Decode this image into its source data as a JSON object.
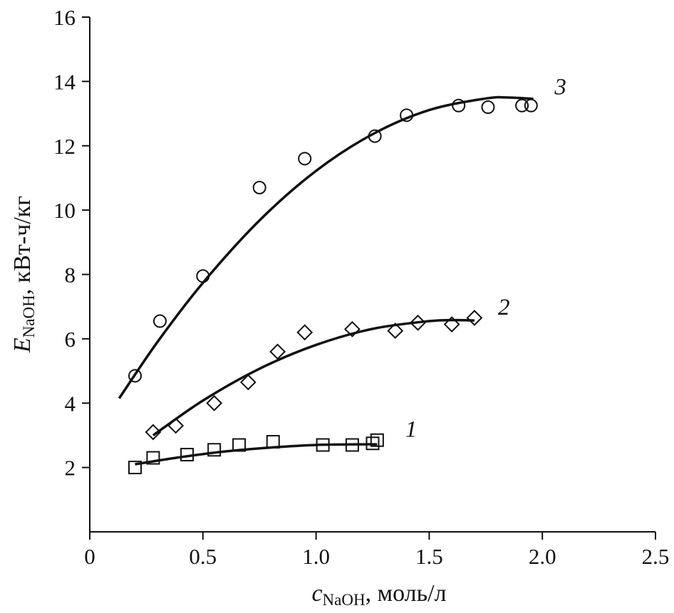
{
  "chart_data": {
    "type": "scatter",
    "title": "",
    "xlabel": {
      "var": "c",
      "sub": "NaOH",
      "unit": ", моль/л"
    },
    "ylabel": {
      "var": "E",
      "sub": "NaOH",
      "unit": ", кВт-ч/кг"
    },
    "xlim": [
      0,
      2.5
    ],
    "ylim": [
      0,
      16
    ],
    "xticks": [
      0,
      0.5,
      1.0,
      1.5,
      2.0,
      2.5
    ],
    "xtick_labels": [
      "0",
      "0.5",
      "1.0",
      "1.5",
      "2.0",
      "2.5"
    ],
    "yticks": [
      2,
      4,
      6,
      8,
      10,
      12,
      14,
      16
    ],
    "ytick_labels": [
      "2",
      "4",
      "6",
      "8",
      "10",
      "12",
      "14",
      "16"
    ],
    "grid": false,
    "series": [
      {
        "name": "1",
        "marker": "square",
        "x": [
          0.2,
          0.28,
          0.43,
          0.55,
          0.66,
          0.81,
          1.03,
          1.16,
          1.25,
          1.27
        ],
        "y": [
          2.0,
          2.3,
          2.4,
          2.55,
          2.7,
          2.8,
          2.7,
          2.7,
          2.75,
          2.85
        ],
        "fit": {
          "x": [
            0.2,
            0.4,
            0.6,
            0.8,
            1.0,
            1.2,
            1.27
          ],
          "y": [
            2.1,
            2.32,
            2.5,
            2.62,
            2.7,
            2.72,
            2.72
          ]
        },
        "label_at": [
          1.42,
          2.95
        ]
      },
      {
        "name": "2",
        "marker": "diamond",
        "x": [
          0.28,
          0.38,
          0.55,
          0.7,
          0.83,
          0.95,
          1.16,
          1.35,
          1.45,
          1.6,
          1.7
        ],
        "y": [
          3.1,
          3.3,
          4.0,
          4.65,
          5.6,
          6.2,
          6.3,
          6.25,
          6.5,
          6.45,
          6.65
        ],
        "fit": {
          "x": [
            0.28,
            0.5,
            0.75,
            1.0,
            1.25,
            1.5,
            1.62,
            1.7
          ],
          "y": [
            3.0,
            4.08,
            5.07,
            5.81,
            6.31,
            6.55,
            6.58,
            6.57
          ]
        },
        "label_at": [
          1.83,
          6.75
        ]
      },
      {
        "name": "3",
        "marker": "circle",
        "x": [
          0.2,
          0.31,
          0.5,
          0.75,
          0.95,
          1.26,
          1.4,
          1.63,
          1.76,
          1.91,
          1.95
        ],
        "y": [
          4.85,
          6.55,
          7.95,
          10.7,
          11.6,
          12.3,
          12.95,
          13.25,
          13.2,
          13.25,
          13.25
        ],
        "fit": {
          "x": [
            0.13,
            0.3,
            0.5,
            0.75,
            1.0,
            1.25,
            1.5,
            1.75,
            1.85,
            1.96
          ],
          "y": [
            4.15,
            5.91,
            7.74,
            9.68,
            11.22,
            12.36,
            13.11,
            13.47,
            13.5,
            13.46
          ]
        },
        "label_at": [
          2.08,
          13.6
        ]
      }
    ]
  }
}
